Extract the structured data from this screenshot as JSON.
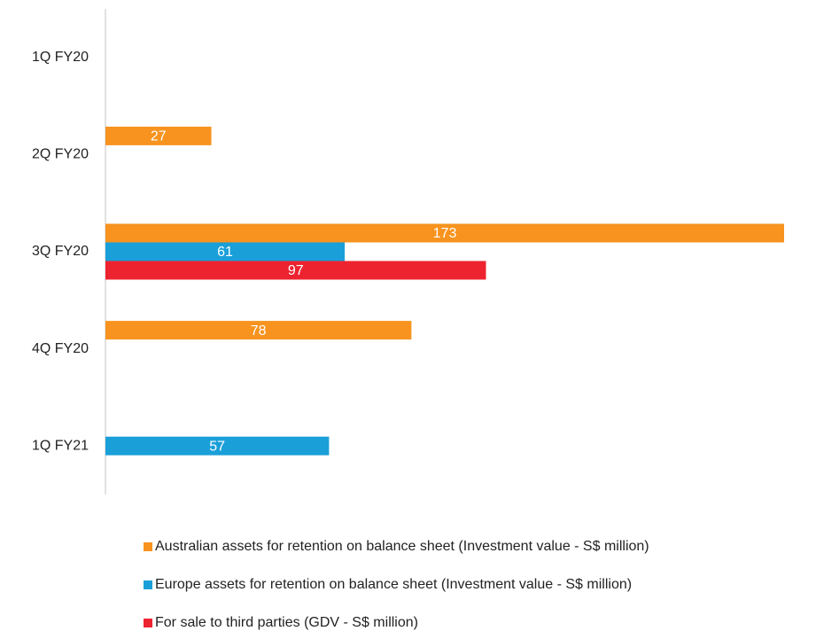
{
  "chart_data": {
    "type": "hbar",
    "categories": [
      "1Q FY20",
      "2Q FY20",
      "3Q FY20",
      "4Q FY20",
      "1Q FY21"
    ],
    "series": [
      {
        "name": "Australian assets for retention on balance sheet (Investment value - S$ million)",
        "color": "#f7931e",
        "values": [
          null,
          27,
          173,
          78,
          null
        ]
      },
      {
        "name": "Europe assets for retention on balance sheet (Investment value - S$ million)",
        "color": "#1a9fd9",
        "values": [
          null,
          null,
          61,
          null,
          57
        ]
      },
      {
        "name": "For sale to third parties (GDV - S$ million)",
        "color": "#ee2330",
        "values": [
          null,
          null,
          97,
          null,
          null
        ]
      }
    ],
    "legend": "bottom"
  }
}
